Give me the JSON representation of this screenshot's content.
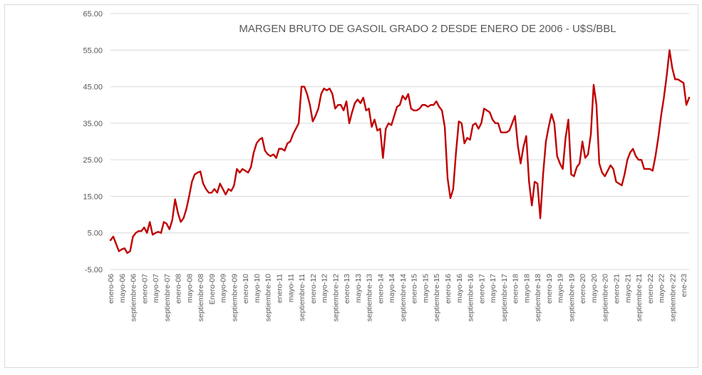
{
  "chart_data": {
    "type": "line",
    "title": "MARGEN BRUTO DE GASOIL GRADO 2 DESDE ENERO DE 2006 - U$S/BBL",
    "xlabel": "",
    "ylabel": "",
    "ylim": [
      -5,
      65
    ],
    "yticks": [
      "65.00",
      "55.00",
      "45.00",
      "35.00",
      "25.00",
      "15.00",
      "5.00",
      "-5.00"
    ],
    "grid": "horizontal",
    "legend": "none",
    "line_color": "#c00000",
    "x_labels": [
      "enero-06",
      "mayo-06",
      "septiembre-06",
      "enero-07",
      "mayo-07",
      "septiembre-07",
      "enero-08",
      "mayo-08",
      "septiembre-08",
      "Enero-09",
      "mayo-09",
      "septiembre-09",
      "enero-10",
      "mayo-10",
      "septiembre-10",
      "enero-11",
      "mayo-11",
      "septiembre-11",
      "enero-12",
      "mayo-12",
      "septiembre-12",
      "enero-13",
      "mayo-13",
      "septiembre-13",
      "enero-14",
      "mayo-14",
      "septiembre-14",
      "enero-15",
      "mayo-15",
      "septiembre-15",
      "enero-16",
      "mayo-16",
      "septiembre-16",
      "enero-17",
      "mayo-17",
      "septiembre-17",
      "enero-18",
      "mayo-18",
      "septiembre-18",
      "enero-19",
      "mayo-19",
      "septiembre-19",
      "enero-20",
      "mayo-20",
      "septiembre-20",
      "enero-21",
      "mayo-21",
      "septiembre-21",
      "enero-22",
      "mayo-22",
      "septiembre-22",
      "ene-23"
    ],
    "x_label_month_index": [
      0,
      4,
      8,
      12,
      16,
      20,
      24,
      28,
      32,
      36,
      40,
      44,
      48,
      52,
      56,
      60,
      64,
      68,
      72,
      76,
      80,
      84,
      88,
      92,
      96,
      100,
      104,
      108,
      112,
      116,
      120,
      124,
      128,
      132,
      136,
      140,
      144,
      148,
      152,
      156,
      160,
      164,
      168,
      172,
      176,
      180,
      184,
      188,
      192,
      196,
      200,
      204
    ],
    "series": [
      {
        "values": [
          3,
          4,
          2,
          0,
          0.5,
          0.8,
          -0.5,
          0,
          4,
          5,
          5.5,
          5.5,
          6.5,
          5,
          8,
          4.5,
          5,
          5.3,
          5,
          8,
          7.5,
          6,
          8.5,
          14.2,
          10.5,
          8,
          9,
          11.5,
          15,
          19,
          21,
          21.5,
          21.8,
          18.5,
          17,
          16,
          16,
          17,
          16,
          18.5,
          17,
          15.5,
          17,
          16.5,
          18,
          22.5,
          21.5,
          22.5,
          22,
          21.5,
          23,
          27,
          29.5,
          30.5,
          31,
          27.5,
          26.5,
          26,
          26.5,
          25.5,
          28,
          28,
          27.5,
          29.5,
          30,
          32,
          33.5,
          35,
          45,
          45,
          43,
          40,
          35.5,
          37,
          39,
          43,
          44.5,
          44,
          44.5,
          43,
          39,
          40,
          40,
          38.5,
          41,
          35,
          38,
          40.5,
          41.5,
          40.5,
          42,
          38.5,
          39,
          34,
          36,
          33,
          33.5,
          25.5,
          33.5,
          35,
          34.5,
          37,
          39.5,
          40,
          42.5,
          41.5,
          43,
          39,
          38.5,
          38.5,
          39,
          40,
          40,
          39.5,
          40,
          40,
          41,
          39.5,
          38.5,
          34,
          20,
          14.5,
          17,
          27,
          35.5,
          35,
          29.5,
          31,
          30.5,
          34.5,
          35,
          33.5,
          35,
          39,
          38.5,
          38,
          36,
          35,
          35,
          32.5,
          32.5,
          32.5,
          33,
          35,
          37,
          29,
          24,
          28.5,
          31.5,
          19,
          12.5,
          19,
          18.5,
          9,
          21,
          30,
          34,
          37.5,
          35,
          26,
          24,
          22.5,
          31,
          36,
          21,
          20.5,
          23,
          24,
          30,
          25.5,
          26.5,
          32,
          45.5,
          40,
          24,
          21.5,
          20.5,
          22,
          23.5,
          22.5,
          19,
          18.5,
          18,
          21,
          25,
          27,
          28,
          26,
          25,
          25,
          22.5,
          22.5,
          22.5,
          22,
          26,
          31,
          37,
          42,
          48,
          55,
          50,
          47,
          47,
          46.5,
          46,
          40,
          42
        ]
      }
    ]
  }
}
